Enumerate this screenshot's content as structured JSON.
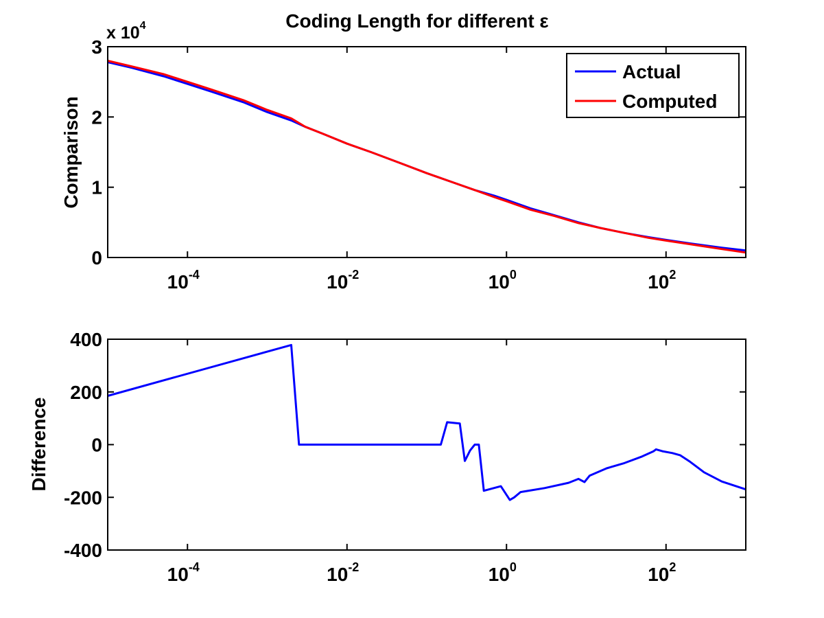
{
  "chart_data": [
    {
      "type": "line",
      "title": "Coding Length for different ε",
      "ylabel": "Comparison",
      "xlabel": "",
      "x_scale": "log",
      "xlim": [
        1e-05,
        1000
      ],
      "ylim": [
        0,
        3
      ],
      "y_multiplier_label": "x 10",
      "y_multiplier_exponent": "4",
      "xticks": [
        {
          "value": 0.0001,
          "base": "10",
          "exp": "-4"
        },
        {
          "value": 0.01,
          "base": "10",
          "exp": "-2"
        },
        {
          "value": 1,
          "base": "10",
          "exp": "0"
        },
        {
          "value": 100,
          "base": "10",
          "exp": "2"
        }
      ],
      "yticks": [
        {
          "value": 0,
          "label": "0"
        },
        {
          "value": 1,
          "label": "1"
        },
        {
          "value": 2,
          "label": "2"
        },
        {
          "value": 3,
          "label": "3"
        }
      ],
      "grid": false,
      "legend": "top-right",
      "series": [
        {
          "name": "Actual",
          "color": "#0000ff",
          "points": [
            [
              1e-05,
              2.78
            ],
            [
              2e-05,
              2.7
            ],
            [
              5e-05,
              2.58
            ],
            [
              0.0001,
              2.47
            ],
            [
              0.0002,
              2.36
            ],
            [
              0.0005,
              2.21
            ],
            [
              0.001,
              2.07
            ],
            [
              0.002,
              1.95
            ],
            [
              0.003,
              1.86
            ],
            [
              0.005,
              1.76
            ],
            [
              0.01,
              1.62
            ],
            [
              0.02,
              1.5
            ],
            [
              0.05,
              1.33
            ],
            [
              0.1,
              1.2
            ],
            [
              0.2,
              1.08
            ],
            [
              0.4,
              0.96
            ],
            [
              0.7,
              0.88
            ],
            [
              1,
              0.82
            ],
            [
              2,
              0.7
            ],
            [
              4,
              0.6
            ],
            [
              8,
              0.5
            ],
            [
              15,
              0.42
            ],
            [
              30,
              0.35
            ],
            [
              60,
              0.29
            ],
            [
              100,
              0.25
            ],
            [
              200,
              0.2
            ],
            [
              500,
              0.14
            ],
            [
              1000,
              0.1
            ]
          ]
        },
        {
          "name": "Computed",
          "color": "#ff0000",
          "points": [
            [
              1e-05,
              2.8
            ],
            [
              2e-05,
              2.72
            ],
            [
              5e-05,
              2.61
            ],
            [
              0.0001,
              2.5
            ],
            [
              0.0002,
              2.39
            ],
            [
              0.0005,
              2.24
            ],
            [
              0.001,
              2.1
            ],
            [
              0.002,
              1.98
            ],
            [
              0.003,
              1.86
            ],
            [
              0.005,
              1.76
            ],
            [
              0.01,
              1.62
            ],
            [
              0.02,
              1.5
            ],
            [
              0.05,
              1.33
            ],
            [
              0.1,
              1.2
            ],
            [
              0.2,
              1.08
            ],
            [
              0.4,
              0.96
            ],
            [
              0.7,
              0.86
            ],
            [
              1,
              0.8
            ],
            [
              2,
              0.68
            ],
            [
              4,
              0.59
            ],
            [
              8,
              0.49
            ],
            [
              15,
              0.42
            ],
            [
              30,
              0.35
            ],
            [
              60,
              0.28
            ],
            [
              100,
              0.24
            ],
            [
              200,
              0.19
            ],
            [
              500,
              0.12
            ],
            [
              1000,
              0.07
            ]
          ]
        }
      ]
    },
    {
      "type": "line",
      "title": "",
      "ylabel": "Difference",
      "xlabel": "",
      "x_scale": "log",
      "xlim": [
        1e-05,
        1000
      ],
      "ylim": [
        -400,
        400
      ],
      "xticks": [
        {
          "value": 0.0001,
          "base": "10",
          "exp": "-4"
        },
        {
          "value": 0.01,
          "base": "10",
          "exp": "-2"
        },
        {
          "value": 1,
          "base": "10",
          "exp": "0"
        },
        {
          "value": 100,
          "base": "10",
          "exp": "2"
        }
      ],
      "yticks": [
        {
          "value": 400,
          "label": "400"
        },
        {
          "value": 200,
          "label": "200"
        },
        {
          "value": 0,
          "label": "0"
        },
        {
          "value": -200,
          "label": "-200"
        },
        {
          "value": -400,
          "label": "-400"
        }
      ],
      "grid": false,
      "series": [
        {
          "color": "#0000ff",
          "points": [
            [
              1e-05,
              185
            ],
            [
              0.002,
              378
            ],
            [
              0.0025,
              0
            ],
            [
              0.15,
              0
            ],
            [
              0.18,
              85
            ],
            [
              0.26,
              80
            ],
            [
              0.3,
              -62
            ],
            [
              0.35,
              -22
            ],
            [
              0.4,
              0
            ],
            [
              0.45,
              0
            ],
            [
              0.52,
              -175
            ],
            [
              0.85,
              -158
            ],
            [
              1.1,
              -210
            ],
            [
              1.25,
              -200
            ],
            [
              1.5,
              -180
            ],
            [
              3,
              -165
            ],
            [
              6,
              -145
            ],
            [
              8,
              -130
            ],
            [
              9.5,
              -142
            ],
            [
              11,
              -118
            ],
            [
              18,
              -90
            ],
            [
              30,
              -70
            ],
            [
              50,
              -45
            ],
            [
              70,
              -25
            ],
            [
              75,
              -18
            ],
            [
              90,
              -25
            ],
            [
              120,
              -32
            ],
            [
              150,
              -40
            ],
            [
              200,
              -65
            ],
            [
              300,
              -105
            ],
            [
              500,
              -140
            ],
            [
              1000,
              -170
            ]
          ]
        }
      ]
    }
  ]
}
